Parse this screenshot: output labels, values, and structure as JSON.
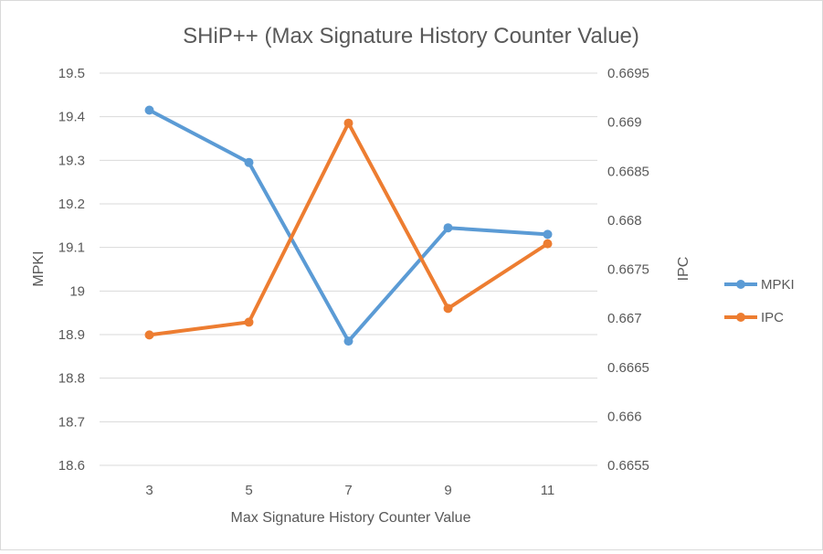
{
  "chart_data": {
    "type": "line",
    "title": "SHiP++ (Max Signature History Counter Value)",
    "xlabel": "Max Signature History Counter Value",
    "ylabel": "MPKI",
    "y2label": "IPC",
    "categories": [
      "3",
      "5",
      "7",
      "9",
      "11"
    ],
    "ylim": [
      18.6,
      19.5
    ],
    "y_ticks": [
      "18.6",
      "18.7",
      "18.8",
      "18.9",
      "19",
      "19.1",
      "19.2",
      "19.3",
      "19.4",
      "19.5"
    ],
    "y2lim": [
      0.6655,
      0.6695
    ],
    "y2_ticks": [
      "0.6655",
      "0.666",
      "0.6665",
      "0.667",
      "0.6675",
      "0.668",
      "0.6685",
      "0.669",
      "0.6695"
    ],
    "grid": true,
    "legend_position": "right",
    "series": [
      {
        "name": "MPKI",
        "axis": "left",
        "color": "#5b9bd5",
        "values": [
          19.415,
          19.295,
          18.885,
          19.145,
          19.13
        ]
      },
      {
        "name": "IPC",
        "axis": "right",
        "color": "#ed7d31",
        "values": [
          0.66683,
          0.66696,
          0.66899,
          0.6671,
          0.66776
        ]
      }
    ]
  }
}
